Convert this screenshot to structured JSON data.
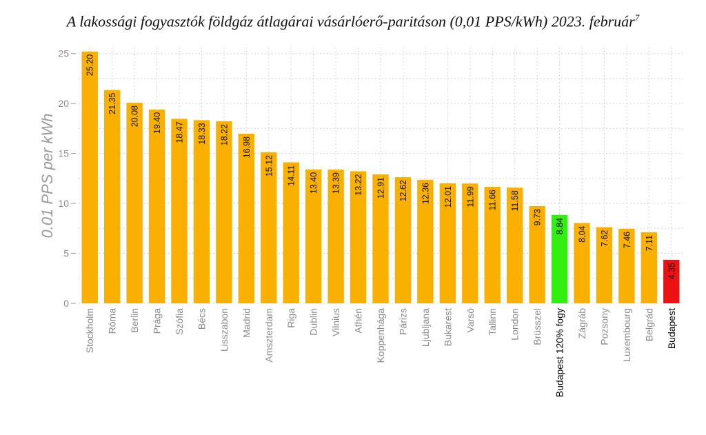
{
  "chart_data": {
    "type": "bar",
    "title": "A lakossági fogyasztók földgáz átlagárai vásárlóerő-paritáson (0,01 PPS/kWh) 2023. február",
    "title_sup": "7",
    "ylabel": "0.01 PPS per kWh",
    "xlabel": "",
    "ylim": [
      0,
      25.6
    ],
    "yticks": [
      0,
      5,
      10,
      15,
      20,
      25
    ],
    "grid": true,
    "categories": [
      "Stockholm",
      "Róma",
      "Berlin",
      "Prága",
      "Szófia",
      "Bécs",
      "Lisszabon",
      "Madrid",
      "Amszterdam",
      "Riga",
      "Dublin",
      "Vilnius",
      "Athén",
      "Koppenhága",
      "Párizs",
      "Ljubljana",
      "Bukarest",
      "Varsó",
      "Tallinn",
      "London",
      "Brüsszel",
      "Budapest 120% fogy",
      "Zágráb",
      "Pozsony",
      "Luxembourg",
      "Belgrád",
      "Budapest"
    ],
    "values": [
      25.2,
      21.35,
      20.08,
      19.4,
      18.47,
      18.33,
      18.22,
      16.98,
      15.12,
      14.11,
      13.4,
      13.39,
      13.22,
      12.91,
      12.62,
      12.36,
      12.01,
      11.99,
      11.66,
      11.58,
      9.73,
      8.84,
      8.04,
      7.62,
      7.46,
      7.11,
      4.35
    ],
    "value_labels": [
      "25.20",
      "21.35",
      "20.08",
      "19.40",
      "18.47",
      "18.33",
      "18.22",
      "16.98",
      "15.12",
      "14.11",
      "13.40",
      "13.39",
      "13.22",
      "12.91",
      "12.62",
      "12.36",
      "12.01",
      "11.99",
      "11.66",
      "11.58",
      "9.73",
      "8.84",
      "8.04",
      "7.62",
      "7.46",
      "7.11",
      "4.35"
    ],
    "bar_colors": [
      "#F9B000",
      "#F9B000",
      "#F9B000",
      "#F9B000",
      "#F9B000",
      "#F9B000",
      "#F9B000",
      "#F9B000",
      "#F9B000",
      "#F9B000",
      "#F9B000",
      "#F9B000",
      "#F9B000",
      "#F9B000",
      "#F9B000",
      "#F9B000",
      "#F9B000",
      "#F9B000",
      "#F9B000",
      "#F9B000",
      "#F9B000",
      "#33EE11",
      "#F9B000",
      "#F9B000",
      "#F9B000",
      "#F9B000",
      "#EE1111"
    ],
    "highlight_categories": [
      "Budapest 120% fogy",
      "Budapest"
    ]
  }
}
